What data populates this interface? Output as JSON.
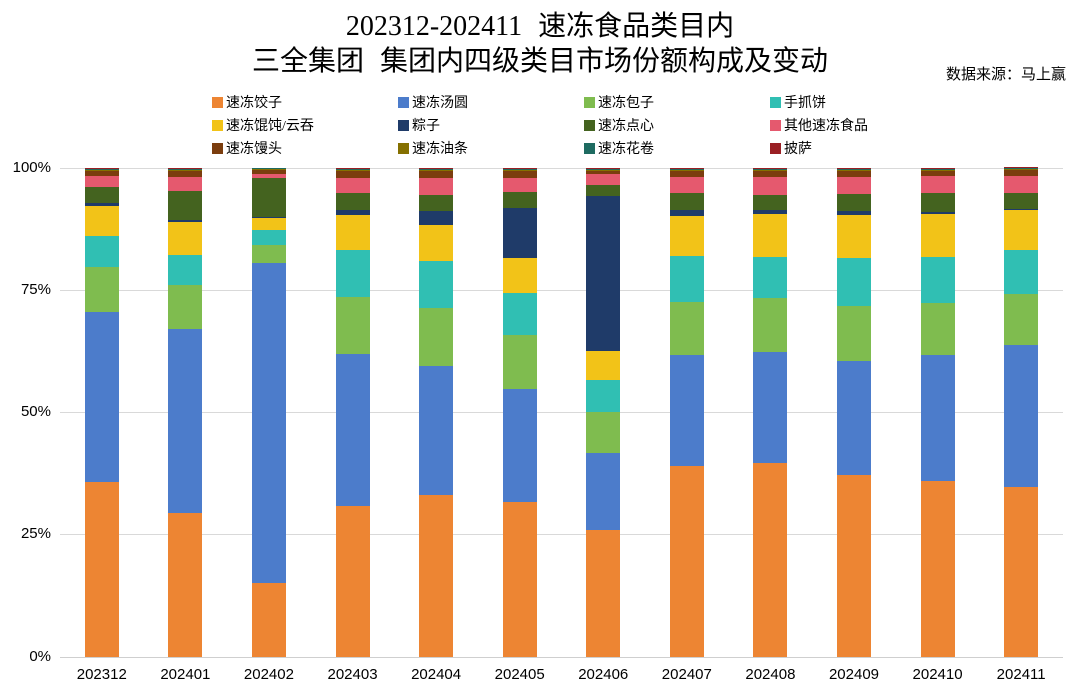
{
  "title": {
    "line1": "202312-202411 速冻食品类目内",
    "line2": "三全集团 集团内四级类目市场份额构成及变动"
  },
  "source_note": "数据来源：马上赢",
  "chart_data": {
    "type": "bar",
    "stacked": true,
    "unit": "percent",
    "title": "202312-202411 速冻食品类目内 三全集团 集团内四级类目市场份额构成及变动",
    "xlabel": "",
    "ylabel": "",
    "ylim": [
      0,
      100
    ],
    "grid": true,
    "legend_position": "top",
    "yticks": [
      {
        "label": "0%",
        "value": 0
      },
      {
        "label": "25%",
        "value": 25
      },
      {
        "label": "50%",
        "value": 50
      },
      {
        "label": "75%",
        "value": 75
      },
      {
        "label": "100%",
        "value": 100
      }
    ],
    "categories": [
      "202312",
      "202401",
      "202402",
      "202403",
      "202404",
      "202405",
      "202406",
      "202407",
      "202408",
      "202409",
      "202410",
      "202411"
    ],
    "series": [
      {
        "name": "速冻饺子",
        "color": "#ED8533",
        "values": [
          35.7,
          29.3,
          15.1,
          30.8,
          33.0,
          31.6,
          25.9,
          38.9,
          39.6,
          37.2,
          35.8,
          34.7
        ]
      },
      {
        "name": "速冻汤圆",
        "color": "#4C7CCB",
        "values": [
          34.7,
          37.6,
          65.3,
          31.0,
          26.4,
          23.1,
          15.8,
          22.7,
          22.7,
          23.2,
          25.8,
          29.0
        ]
      },
      {
        "name": "速冻包子",
        "color": "#7FBC4F",
        "values": [
          9.3,
          9.0,
          3.8,
          11.8,
          11.8,
          11.1,
          8.3,
          11.0,
          11.1,
          11.3,
          10.6,
          10.4
        ]
      },
      {
        "name": "手抓饼",
        "color": "#30BFB3",
        "values": [
          6.3,
          6.2,
          3.0,
          9.5,
          9.7,
          8.5,
          6.6,
          9.3,
          8.3,
          9.9,
          9.5,
          9.2
        ]
      },
      {
        "name": "速冻馄饨/云吞",
        "color": "#F2C318",
        "values": [
          6.2,
          6.8,
          2.4,
          7.2,
          7.3,
          7.3,
          5.9,
          8.2,
          8.7,
          8.7,
          8.7,
          8.0
        ]
      },
      {
        "name": "粽子",
        "color": "#1F3B69",
        "values": [
          0.5,
          0.4,
          0.3,
          1.0,
          3.0,
          10.2,
          31.6,
          1.2,
          0.9,
          0.9,
          0.6,
          0.3
        ]
      },
      {
        "name": "速冻点心",
        "color": "#44631F",
        "values": [
          3.4,
          5.9,
          7.9,
          3.5,
          3.2,
          3.1,
          2.4,
          3.5,
          3.1,
          3.4,
          3.8,
          3.3
        ]
      },
      {
        "name": "其他速冻食品",
        "color": "#E5596E",
        "values": [
          2.2,
          2.9,
          0.9,
          3.0,
          3.4,
          2.9,
          2.1,
          3.3,
          3.7,
          3.5,
          3.5,
          3.5
        ]
      },
      {
        "name": "速冻馒头",
        "color": "#7B3D0E",
        "values": [
          1.1,
          1.3,
          0.8,
          1.6,
          1.6,
          1.6,
          0.8,
          1.3,
          1.3,
          1.3,
          1.1,
          1.1
        ]
      },
      {
        "name": "速冻油条",
        "color": "#857000",
        "values": [
          0.2,
          0.2,
          0.2,
          0.2,
          0.2,
          0.2,
          0.2,
          0.2,
          0.2,
          0.2,
          0.2,
          0.2
        ]
      },
      {
        "name": "速冻花卷",
        "color": "#1E6B61",
        "values": [
          0.2,
          0.2,
          0.2,
          0.2,
          0.2,
          0.2,
          0.2,
          0.2,
          0.2,
          0.2,
          0.2,
          0.2
        ]
      },
      {
        "name": "披萨",
        "color": "#9A1F24",
        "values": [
          0.2,
          0.2,
          0.1,
          0.2,
          0.2,
          0.2,
          0.2,
          0.2,
          0.2,
          0.2,
          0.2,
          0.2
        ]
      }
    ]
  }
}
